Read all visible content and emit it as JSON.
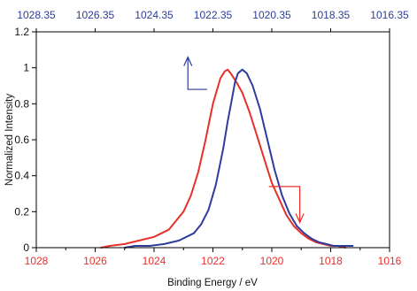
{
  "chart_data": {
    "type": "line",
    "title": "",
    "xlabel": "Binding Energy / eV",
    "ylabel": "Normalized Intensity",
    "x_bottom": {
      "min": 1028,
      "max": 1016,
      "reversed": true,
      "ticks": [
        1028,
        1026,
        1024,
        1022,
        1020,
        1018,
        1016
      ],
      "tick_labels": [
        "1028",
        "1026",
        "1024",
        "1022",
        "1020",
        "1018",
        "1016"
      ],
      "color": "#e8302a"
    },
    "x_top": {
      "min": 1028.35,
      "max": 1016.35,
      "reversed": true,
      "ticks": [
        1028.35,
        1026.35,
        1024.35,
        1022.35,
        1020.35,
        1018.35,
        1016.35
      ],
      "tick_labels": [
        "1028.35",
        "1026.35",
        "1024.35",
        "1022.35",
        "1020.35",
        "1018.35",
        "1016.35"
      ],
      "color": "#2e3c9c"
    },
    "y": {
      "min": 0,
      "max": 1.2,
      "ticks": [
        0,
        0.2,
        0.4,
        0.6,
        0.8,
        1,
        1.2
      ],
      "tick_labels": [
        "0",
        "0.2",
        "0.4",
        "0.6",
        "0.8",
        "1",
        "1.2"
      ]
    },
    "grid": false,
    "legend": "none",
    "series": [
      {
        "axis": "bottom",
        "color": "#e8302a",
        "x": [
          1025.8,
          1025.5,
          1025.0,
          1024.5,
          1024.0,
          1023.5,
          1023.0,
          1022.75,
          1022.5,
          1022.25,
          1022.0,
          1021.75,
          1021.6,
          1021.5,
          1021.4,
          1021.2,
          1021.0,
          1020.75,
          1020.5,
          1020.25,
          1020.0,
          1019.75,
          1019.5,
          1019.25,
          1019.0,
          1018.75,
          1018.5,
          1018.25,
          1018.0,
          1017.75,
          1017.5
        ],
        "y": [
          0.0,
          0.01,
          0.02,
          0.04,
          0.06,
          0.1,
          0.2,
          0.29,
          0.42,
          0.6,
          0.8,
          0.94,
          0.98,
          0.99,
          0.97,
          0.92,
          0.86,
          0.75,
          0.62,
          0.49,
          0.36,
          0.27,
          0.18,
          0.12,
          0.08,
          0.05,
          0.03,
          0.02,
          0.01,
          0.01,
          0.0
        ]
      },
      {
        "axis": "top",
        "color": "#2e3c9c",
        "x": [
          1025.35,
          1025.0,
          1024.5,
          1024.0,
          1023.5,
          1023.0,
          1022.75,
          1022.5,
          1022.25,
          1022.0,
          1021.85,
          1021.7,
          1021.6,
          1021.5,
          1021.35,
          1021.2,
          1021.0,
          1020.75,
          1020.5,
          1020.25,
          1020.0,
          1019.75,
          1019.5,
          1019.25,
          1019.0,
          1018.75,
          1018.5,
          1018.25,
          1018.0,
          1017.75,
          1017.6
        ],
        "y": [
          0.0,
          0.01,
          0.01,
          0.02,
          0.04,
          0.08,
          0.13,
          0.21,
          0.35,
          0.55,
          0.7,
          0.83,
          0.92,
          0.97,
          0.99,
          0.97,
          0.9,
          0.77,
          0.6,
          0.43,
          0.29,
          0.19,
          0.12,
          0.08,
          0.05,
          0.03,
          0.02,
          0.01,
          0.01,
          0.01,
          0.01
        ]
      }
    ],
    "annotations": [
      {
        "type": "shift-arrow",
        "color": "#2e3c9c",
        "direction": "up-left",
        "from": {
          "x": 1022.2,
          "y": 0.88
        },
        "corner": {
          "x": 1022.85,
          "y": 0.88
        },
        "to": {
          "x": 1022.85,
          "y": 1.06
        }
      },
      {
        "type": "shift-arrow",
        "color": "#e8302a",
        "direction": "down-right",
        "from": {
          "x": 1020.1,
          "y": 0.34
        },
        "corner": {
          "x": 1019.05,
          "y": 0.34
        },
        "to": {
          "x": 1019.05,
          "y": 0.14
        }
      }
    ]
  }
}
